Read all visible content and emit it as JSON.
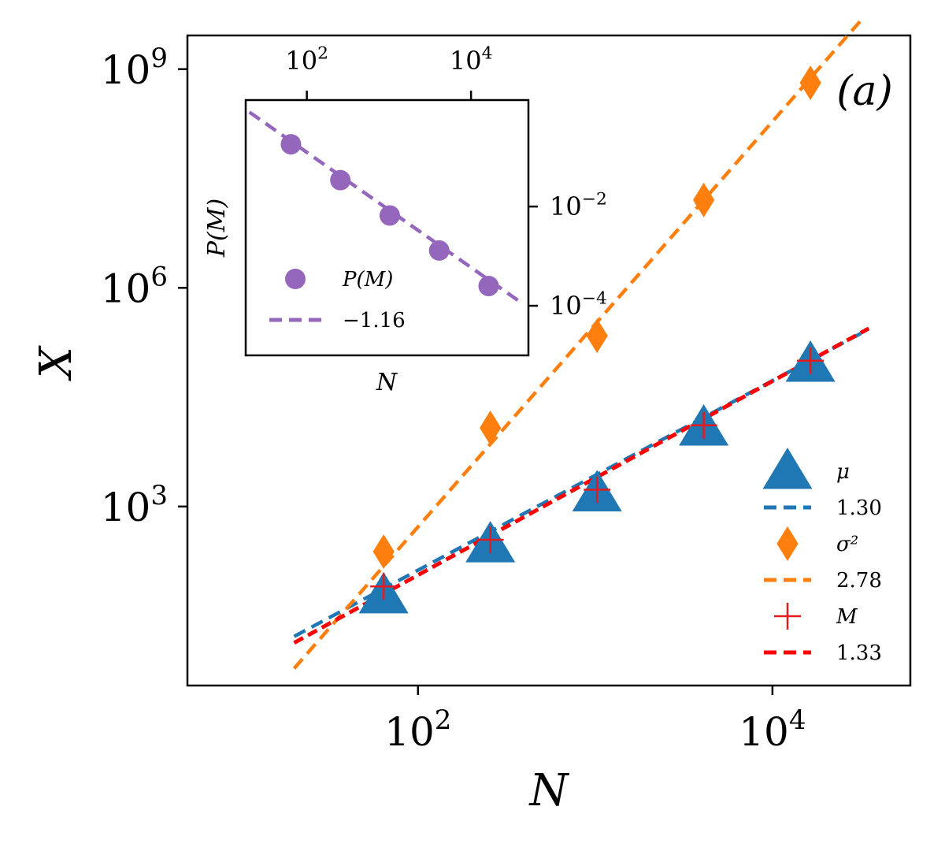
{
  "chart_data": [
    {
      "type": "scatter",
      "panel_label": "(a)",
      "xlabel": "N",
      "ylabel": "X",
      "xscale": "log",
      "yscale": "log",
      "xlim": [
        5.0,
        60000
      ],
      "ylim": [
        3.5,
        2900000000.0
      ],
      "x_ticks": [
        {
          "base": "10",
          "exp": "2",
          "value": 100
        },
        {
          "base": "10",
          "exp": "4",
          "value": 10000
        }
      ],
      "y_ticks": [
        {
          "base": "10",
          "exp": "3",
          "value": 1000
        },
        {
          "base": "10",
          "exp": "6",
          "value": 1000000
        },
        {
          "base": "10",
          "exp": "9",
          "value": 1000000000
        }
      ],
      "series": [
        {
          "name": "μ",
          "marker": "triangle",
          "color": "#1f77b4",
          "x": [
            64,
            256,
            1024,
            4096,
            16384
          ],
          "y": [
            60,
            300,
            1500,
            12000,
            90000
          ]
        },
        {
          "name": "σ²",
          "marker": "diamond",
          "color": "#ff7f0e",
          "x": [
            64,
            256,
            1024,
            4096,
            16384
          ],
          "y": [
            240,
            12000,
            220000,
            16000000,
            650000000
          ]
        },
        {
          "name": "M",
          "marker": "plus",
          "color": "#e41a1c",
          "x": [
            64,
            256,
            1024,
            4096,
            16384
          ],
          "y": [
            80,
            350,
            1700,
            13000,
            100000
          ]
        }
      ],
      "fits": [
        {
          "name": "1.30",
          "slope": 1.3,
          "color": "#1f77b4",
          "x": [
            20,
            32768
          ],
          "y_at_x0": 16.5
        },
        {
          "name": "2.78",
          "slope": 2.78,
          "color": "#ff7f0e",
          "x": [
            20,
            32768
          ],
          "y_at_x0": 6.0
        },
        {
          "name": "1.33",
          "slope": 1.33,
          "color": "#ff0000",
          "x": [
            20,
            35000
          ],
          "y_at_x0": 13.5
        }
      ],
      "legend": {
        "position": "lower right",
        "entries": [
          {
            "kind": "marker",
            "marker": "triangle",
            "color": "#1f77b4",
            "label": "μ"
          },
          {
            "kind": "line",
            "color": "#1f77b4",
            "label": "1.30"
          },
          {
            "kind": "marker",
            "marker": "diamond",
            "color": "#ff7f0e",
            "label": "σ²"
          },
          {
            "kind": "line",
            "color": "#ff7f0e",
            "label": "2.78"
          },
          {
            "kind": "marker",
            "marker": "plus",
            "color": "#e41a1c",
            "label": "M"
          },
          {
            "kind": "line",
            "color": "#ff0000",
            "label": "1.33"
          }
        ]
      }
    },
    {
      "type": "scatter",
      "role": "inset",
      "xlabel": "N",
      "ylabel": "P(M)",
      "xscale": "log",
      "yscale": "log",
      "xlim": [
        18,
        50000
      ],
      "ylim": [
        1e-05,
        1.4
      ],
      "x_ticks": [
        {
          "base": "10",
          "exp": "2",
          "value": 100
        },
        {
          "base": "10",
          "exp": "4",
          "value": 10000
        }
      ],
      "y_ticks": [
        {
          "base": "10",
          "exp": "−2",
          "value": 0.01
        },
        {
          "base": "10",
          "exp": "−4",
          "value": 0.0001
        }
      ],
      "series": [
        {
          "name": "P(M)",
          "marker": "circle",
          "color": "#9467bd",
          "x": [
            64,
            256,
            1024,
            4096,
            16384
          ],
          "y": [
            0.18,
            0.034,
            0.0066,
            0.0013,
            0.00025
          ]
        }
      ],
      "fits": [
        {
          "name": "−1.16",
          "slope": -1.16,
          "color": "#9467bd",
          "x": [
            20,
            40000
          ],
          "y_at_x0": 0.8
        }
      ],
      "legend": {
        "position": "lower left",
        "entries": [
          {
            "kind": "marker",
            "marker": "circle",
            "color": "#9467bd",
            "label": "P(M)"
          },
          {
            "kind": "line",
            "color": "#9467bd",
            "label": "−1.16"
          }
        ]
      }
    }
  ]
}
